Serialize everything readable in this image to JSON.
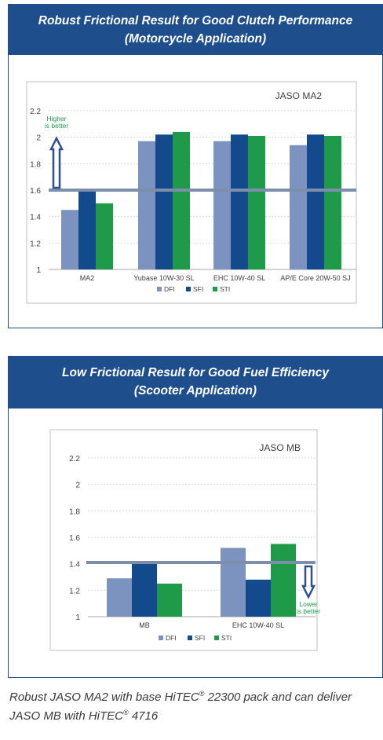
{
  "panels": [
    {
      "header_line1": "Robust Frictional Result for Good Clutch Performance",
      "header_line2": "(Motorcycle Application)"
    },
    {
      "header_line1": "Low Frictional Result for Good Fuel Efficiency",
      "header_line2": "(Scooter Application)"
    }
  ],
  "caption": {
    "line1_before": "Robust JASO MA2 with base HiTEC",
    "line1_reg": "®",
    "line1_after": " 22300 pack and can deliver",
    "line2_before": "JASO MB with HiTEC",
    "line2_reg": "®",
    "line2_after": " 4716"
  },
  "colors": {
    "DFI": "#7b93be",
    "SFI": "#134a8c",
    "STI": "#1e9a48",
    "threshold": "#7d8dac",
    "arrow": "#2c4f8f",
    "arrow_label": "#1e9a48"
  },
  "chart_data": [
    {
      "type": "bar",
      "title": "JASO MA2",
      "categories": [
        "MA2",
        "Yubase 10W-30 SL",
        "EHC 10W-40 SL",
        "AP/E Core 20W-50 SJ"
      ],
      "series": [
        {
          "name": "DFI",
          "values": [
            1.45,
            1.97,
            1.97,
            1.94
          ]
        },
        {
          "name": "SFI",
          "values": [
            1.59,
            2.02,
            2.02,
            2.02
          ]
        },
        {
          "name": "STI",
          "values": [
            1.5,
            2.04,
            2.01,
            2.01
          ]
        }
      ],
      "ylim": [
        1,
        2.2
      ],
      "yticks": [
        "1",
        "1.2",
        "1.4",
        "1.6",
        "1.8",
        "2",
        "2.2"
      ],
      "threshold": 1.6,
      "arrow_direction": "up",
      "arrow_label_lines": [
        "Higher",
        "is better"
      ],
      "legend": "bottom"
    },
    {
      "type": "bar",
      "title": "JASO MB",
      "categories": [
        "MB",
        "EHC 10W-40 SL"
      ],
      "series": [
        {
          "name": "DFI",
          "values": [
            1.29,
            1.52
          ]
        },
        {
          "name": "SFI",
          "values": [
            1.4,
            1.28
          ]
        },
        {
          "name": "STI",
          "values": [
            1.25,
            1.55
          ]
        }
      ],
      "ylim": [
        1,
        2.2
      ],
      "yticks": [
        "1",
        "1.2",
        "1.4",
        "1.6",
        "1.8",
        "2",
        "2.2"
      ],
      "threshold": 1.41,
      "arrow_direction": "down",
      "arrow_label_lines": [
        "Lower",
        "is better"
      ],
      "legend": "bottom"
    }
  ]
}
